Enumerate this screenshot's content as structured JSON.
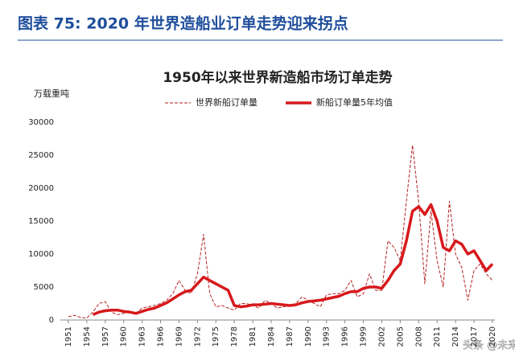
{
  "header": {
    "title": "图表 75: 2020 年世界造船业订单走势迎来拐点"
  },
  "watermark": "头条 @未来智库",
  "chart_data": {
    "type": "line",
    "title": "1950年以来世界新造船市场订单走势",
    "y_label": "万载重吨",
    "x": [
      1951,
      1952,
      1953,
      1954,
      1955,
      1956,
      1957,
      1958,
      1959,
      1960,
      1961,
      1962,
      1963,
      1964,
      1965,
      1966,
      1967,
      1968,
      1969,
      1970,
      1971,
      1972,
      1973,
      1974,
      1975,
      1976,
      1977,
      1978,
      1979,
      1980,
      1981,
      1982,
      1983,
      1984,
      1985,
      1986,
      1987,
      1988,
      1989,
      1990,
      1991,
      1992,
      1993,
      1994,
      1995,
      1996,
      1997,
      1998,
      1999,
      2000,
      2001,
      2002,
      2003,
      2004,
      2005,
      2006,
      2007,
      2008,
      2009,
      2010,
      2011,
      2012,
      2013,
      2014,
      2015,
      2016,
      2017,
      2018,
      2019,
      2020
    ],
    "series": [
      {
        "name": "世界新船订单量",
        "color": "#b22222",
        "dashed": true,
        "values": [
          500,
          700,
          400,
          300,
          1200,
          2500,
          2800,
          1200,
          800,
          1000,
          1200,
          1000,
          1800,
          2000,
          2200,
          2500,
          3000,
          4000,
          6000,
          4500,
          4000,
          7000,
          13000,
          4000,
          2000,
          2200,
          1800,
          1500,
          2500,
          2500,
          2200,
          1800,
          3000,
          2500,
          1800,
          2000,
          2200,
          2500,
          3500,
          3000,
          2500,
          2000,
          3800,
          4000,
          4000,
          4500,
          6000,
          3500,
          4000,
          7000,
          4500,
          4500,
          12000,
          11000,
          9000,
          18000,
          26500,
          18000,
          5500,
          16500,
          9000,
          5000,
          18000,
          10000,
          8000,
          3000,
          7500,
          8500,
          7000,
          6000
        ]
      },
      {
        "name": "新船订单量5年均值",
        "color": "#d7191c",
        "dashed": false,
        "values": [
          null,
          null,
          null,
          null,
          800,
          1200,
          1400,
          1500,
          1500,
          1300,
          1200,
          1000,
          1300,
          1600,
          1800,
          2200,
          2600,
          3200,
          3800,
          4300,
          4500,
          5500,
          6500,
          6000,
          5500,
          5000,
          4500,
          2200,
          2000,
          2100,
          2300,
          2300,
          2400,
          2500,
          2400,
          2300,
          2200,
          2300,
          2600,
          2800,
          2900,
          3000,
          3200,
          3400,
          3600,
          4000,
          4300,
          4300,
          4800,
          5000,
          5000,
          4800,
          6000,
          7500,
          8500,
          12000,
          16500,
          17200,
          16000,
          17500,
          15000,
          11000,
          10500,
          12000,
          11500,
          10000,
          10500,
          9000,
          7500,
          8500
        ]
      }
    ],
    "xlim": [
      1949.7,
      2020.4
    ],
    "xticks": [
      1951,
      1954,
      1957,
      1960,
      1963,
      1966,
      1969,
      1972,
      1975,
      1978,
      1981,
      1984,
      1987,
      1990,
      1993,
      1996,
      1999,
      2002,
      2005,
      2008,
      2011,
      2014,
      2017,
      2020
    ],
    "ylim": [
      0,
      30000
    ],
    "yticks": [
      0,
      5000,
      10000,
      15000,
      20000,
      25000,
      30000
    ],
    "grid": false
  }
}
